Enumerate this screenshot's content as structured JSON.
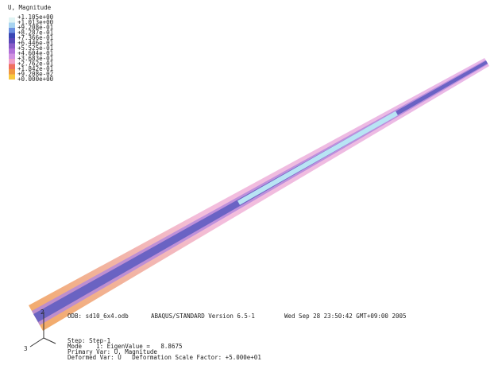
{
  "legend": {
    "title": "U, Magnitude",
    "labels": [
      "+1.105e+00",
      "+1.013e+00",
      "+9.208e-01",
      "+8.287e-01",
      "+7.366e-01",
      "+6.446e-01",
      "+5.525e-01",
      "+4.604e-01",
      "+3.683e-01",
      "+2.762e-01",
      "+1.842e-01",
      "+9.208e-02",
      "+0.000e+00"
    ]
  },
  "info": {
    "odb": "ODB: sd10_6x4.odb",
    "solver": "ABAQUS/STANDARD Version 6.5-1",
    "date": "Wed Sep 28 23:50:42 GMT+09:00 2005"
  },
  "step": {
    "step": "Step: Step-1",
    "mode": "Mode    1: EigenValue =   8.8675",
    "primary": "Primary Var: U, Magnitude",
    "deformed": "Deformed Var: U   Deformation Scale Factor: +5.000e+01"
  },
  "triad": {
    "axis_2": "2",
    "axis_3": "3"
  }
}
